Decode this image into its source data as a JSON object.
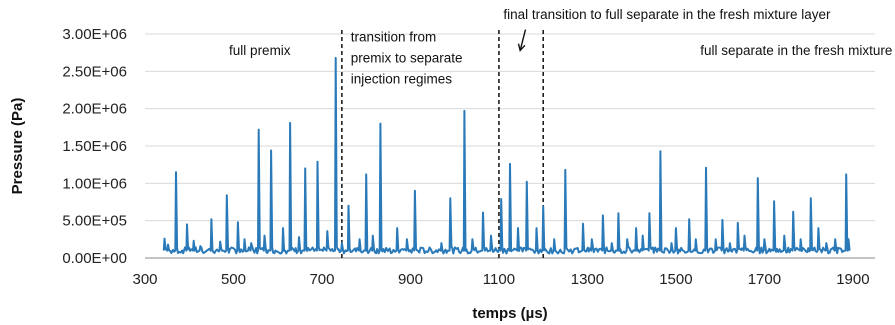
{
  "chart_data": {
    "type": "line",
    "title": "",
    "xlabel": "temps (µs)",
    "ylabel": "Pressure (Pa)",
    "xlim": [
      300,
      1950
    ],
    "ylim": [
      0,
      3000000
    ],
    "grid": "horizontal",
    "legend": "none",
    "color": "#2a7ab9",
    "x_ticks": [
      {
        "value": 300,
        "label": "300"
      },
      {
        "value": 500,
        "label": "500"
      },
      {
        "value": 700,
        "label": "700"
      },
      {
        "value": 900,
        "label": "900"
      },
      {
        "value": 1100,
        "label": "1100"
      },
      {
        "value": 1300,
        "label": "1300"
      },
      {
        "value": 1500,
        "label": "1500"
      },
      {
        "value": 1700,
        "label": "1700"
      },
      {
        "value": 1900,
        "label": "1900"
      }
    ],
    "y_ticks": [
      {
        "value": 0,
        "label": "0.00E+00"
      },
      {
        "value": 500000,
        "label": "5.00E+05"
      },
      {
        "value": 1000000,
        "label": "1.00E+06"
      },
      {
        "value": 1500000,
        "label": "1.50E+06"
      },
      {
        "value": 2000000,
        "label": "2.00E+06"
      },
      {
        "value": 2500000,
        "label": "2.50E+06"
      },
      {
        "value": 3000000,
        "label": "3.00E+06"
      }
    ],
    "series": [
      {
        "start_x": 342,
        "end_x": 1893,
        "baseline": 110000,
        "peaks": [
          [
            344,
            260000
          ],
          [
            352,
            180000
          ],
          [
            370,
            1150000
          ],
          [
            395,
            450000
          ],
          [
            410,
            230000
          ],
          [
            425,
            160000
          ],
          [
            450,
            520000
          ],
          [
            470,
            220000
          ],
          [
            485,
            840000
          ],
          [
            510,
            480000
          ],
          [
            525,
            250000
          ],
          [
            540,
            200000
          ],
          [
            557,
            1720000
          ],
          [
            570,
            300000
          ],
          [
            585,
            1440000
          ],
          [
            612,
            400000
          ],
          [
            628,
            1810000
          ],
          [
            648,
            280000
          ],
          [
            662,
            1200000
          ],
          [
            690,
            1290000
          ],
          [
            712,
            360000
          ],
          [
            731,
            2680000
          ],
          [
            745,
            200000
          ],
          [
            760,
            700000
          ],
          [
            785,
            250000
          ],
          [
            800,
            1120000
          ],
          [
            815,
            300000
          ],
          [
            832,
            1800000
          ],
          [
            870,
            400000
          ],
          [
            892,
            250000
          ],
          [
            910,
            900000
          ],
          [
            970,
            200000
          ],
          [
            990,
            800000
          ],
          [
            1022,
            1970000
          ],
          [
            1040,
            250000
          ],
          [
            1064,
            610000
          ],
          [
            1082,
            300000
          ],
          [
            1105,
            790000
          ],
          [
            1125,
            1260000
          ],
          [
            1143,
            400000
          ],
          [
            1163,
            1020000
          ],
          [
            1185,
            400000
          ],
          [
            1200,
            690000
          ],
          [
            1225,
            250000
          ],
          [
            1250,
            1180000
          ],
          [
            1290,
            460000
          ],
          [
            1310,
            250000
          ],
          [
            1335,
            570000
          ],
          [
            1355,
            200000
          ],
          [
            1370,
            600000
          ],
          [
            1390,
            250000
          ],
          [
            1410,
            400000
          ],
          [
            1425,
            300000
          ],
          [
            1440,
            600000
          ],
          [
            1465,
            1430000
          ],
          [
            1490,
            200000
          ],
          [
            1500,
            400000
          ],
          [
            1530,
            520000
          ],
          [
            1545,
            250000
          ],
          [
            1568,
            1210000
          ],
          [
            1590,
            250000
          ],
          [
            1605,
            510000
          ],
          [
            1622,
            200000
          ],
          [
            1640,
            470000
          ],
          [
            1655,
            300000
          ],
          [
            1685,
            1070000
          ],
          [
            1700,
            250000
          ],
          [
            1722,
            760000
          ],
          [
            1745,
            300000
          ],
          [
            1765,
            620000
          ],
          [
            1782,
            250000
          ],
          [
            1805,
            800000
          ],
          [
            1822,
            400000
          ],
          [
            1840,
            200000
          ],
          [
            1860,
            250000
          ],
          [
            1885,
            1120000
          ],
          [
            1890,
            250000
          ]
        ]
      }
    ],
    "dividers_x": [
      745,
      1100,
      1200
    ],
    "annotations": [
      {
        "text": "full premix",
        "x": 490,
        "y": 2720000
      },
      {
        "text": "transition from",
        "x": 765,
        "y": 2900000
      },
      {
        "text": "premix to separate",
        "x": 765,
        "y": 2620000
      },
      {
        "text": "injection regimes",
        "x": 765,
        "y": 2340000
      },
      {
        "text": "final transition to full separate in the fresh mixture layer",
        "x": 1110,
        "y": 3200000
      },
      {
        "text": "full separate in the fresh mixture layer",
        "x": 1555,
        "y": 2720000
      }
    ],
    "arrow": {
      "from": [
        1160,
        3060000
      ],
      "to": [
        1148,
        2780000
      ]
    }
  }
}
